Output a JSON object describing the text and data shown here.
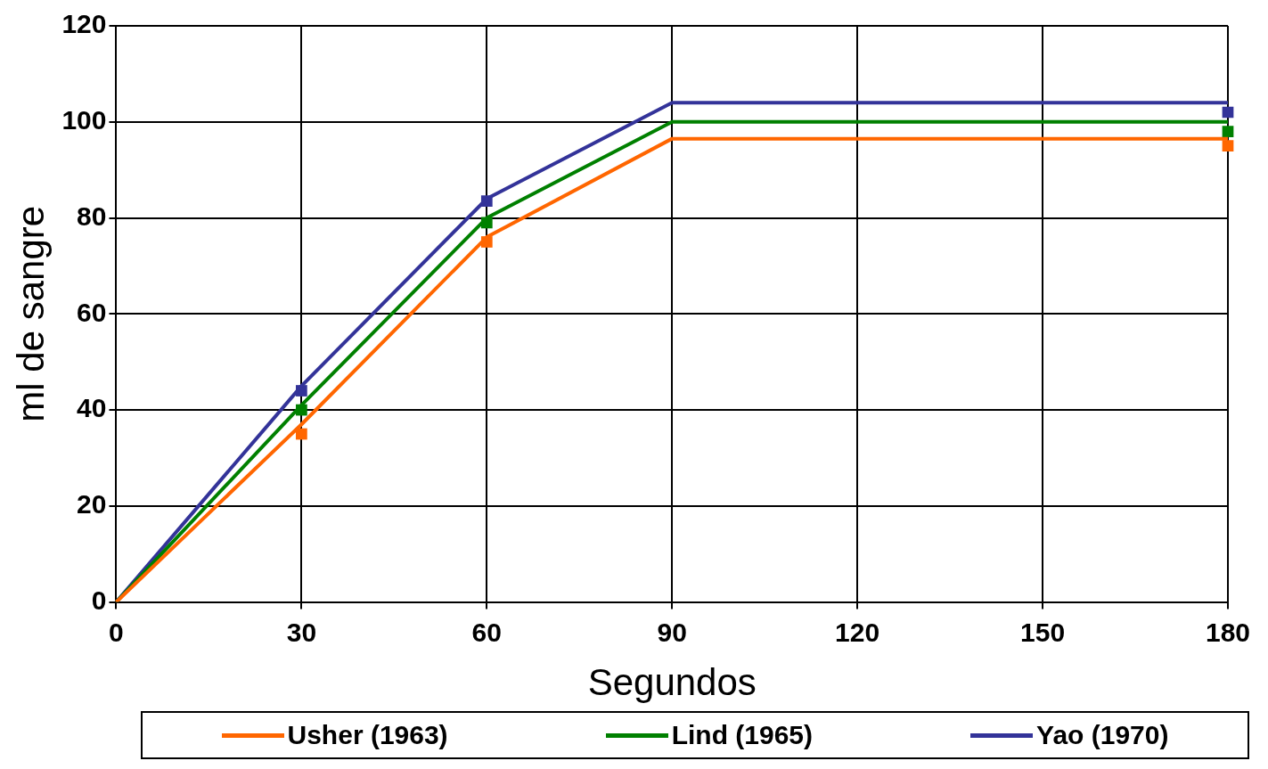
{
  "chart_data": {
    "type": "line",
    "xlabel": "Segundos",
    "ylabel": "ml de sangre",
    "categories": [
      "0",
      "30",
      "60",
      "90",
      "120",
      "150",
      "180"
    ],
    "ylim": [
      0,
      120
    ],
    "yticks": [
      0,
      20,
      40,
      60,
      80,
      100,
      120
    ],
    "grid": true,
    "legend": "bottom",
    "marker": "none",
    "line_style": "solid",
    "series": [
      {
        "name": "Usher (1963)",
        "color": "#ff6600",
        "values": [
          0,
          37,
          76,
          96.5,
          96.5,
          96.5,
          96.5
        ]
      },
      {
        "name": "Lind (1965)",
        "color": "#008000",
        "values": [
          0,
          41,
          80,
          100,
          100,
          100,
          100
        ]
      },
      {
        "name": "Yao (1970)",
        "color": "#333399",
        "values": [
          0,
          45,
          84,
          104,
          104,
          104,
          104
        ]
      },
      {
        "type": "scatter",
        "marker": "square",
        "color": "#ff6600",
        "x": [
          "30",
          "60",
          "180"
        ],
        "values": [
          35,
          75,
          95
        ]
      },
      {
        "type": "scatter",
        "marker": "square",
        "color": "#008000",
        "x": [
          "30",
          "60",
          "180"
        ],
        "values": [
          40,
          79,
          98
        ]
      },
      {
        "type": "scatter",
        "marker": "square",
        "color": "#333399",
        "x": [
          "30",
          "60",
          "180"
        ],
        "values": [
          44,
          83.5,
          102
        ]
      }
    ]
  }
}
